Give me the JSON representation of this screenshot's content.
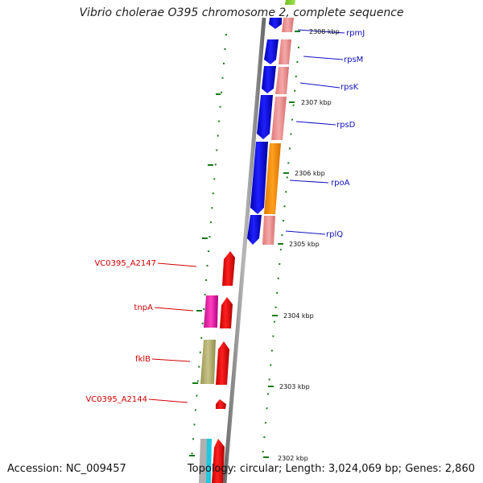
{
  "title": "Vibrio cholerae O395 chromosome 2, complete sequence",
  "footer": {
    "accession": "Accession: NC_009457",
    "topology": "Topology: circular;",
    "length": "Length: 3,024,069 bp;",
    "genes": "Genes: 2,860"
  },
  "colors": {
    "forward_label": "#1010c0",
    "reverse_label": "#d00000",
    "backbone": "#8c8c8c",
    "tick": "#1a7a1a"
  },
  "tick_labels": [
    "2308 kbp",
    "2307 kbp",
    "2306 kbp",
    "2305 kbp",
    "2304 kbp",
    "2303 kbp",
    "2302 kbp"
  ],
  "forward_genes": [
    "rpmJ",
    "rpsM",
    "rpsK",
    "rpsD",
    "rpoA",
    "rplQ"
  ],
  "reverse_genes": [
    "VC0395_A2147",
    "tnpA",
    "fklB",
    "VC0395_A2144"
  ]
}
